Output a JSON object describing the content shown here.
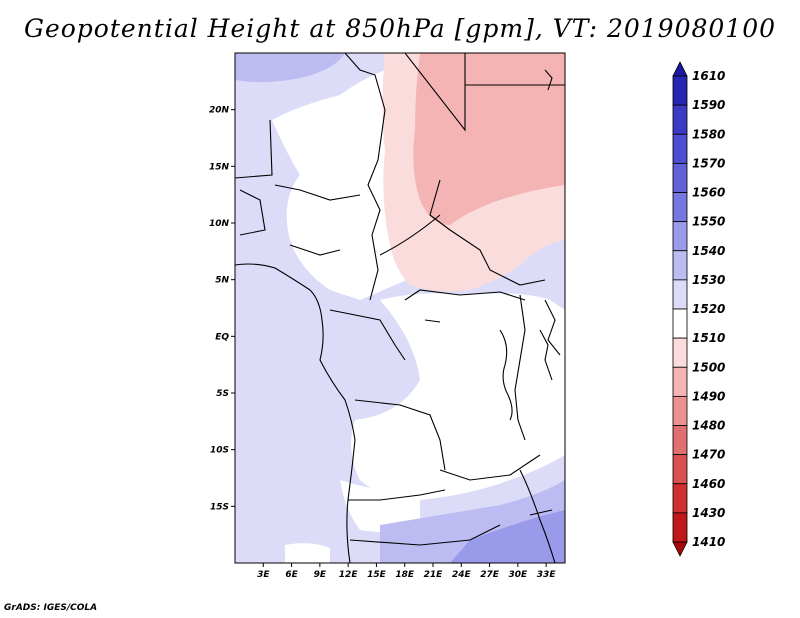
{
  "title": "Geopotential Height at 850hPa [gpm], VT: 2019080100",
  "credit": "GrADS: IGES/COLA",
  "map": {
    "lat_labels": [
      "20N",
      "15N",
      "10N",
      "5N",
      "EQ",
      "5S",
      "10S",
      "15S"
    ],
    "lat_values": [
      20,
      15,
      10,
      5,
      0,
      -5,
      -10,
      -15
    ],
    "lon_labels": [
      "3E",
      "6E",
      "9E",
      "12E",
      "15E",
      "18E",
      "21E",
      "24E",
      "27E",
      "30E",
      "33E"
    ],
    "lon_values": [
      3,
      6,
      9,
      12,
      15,
      18,
      21,
      24,
      27,
      30,
      33
    ],
    "lon_range": [
      0,
      35
    ],
    "lat_range": [
      -20,
      25
    ]
  },
  "colorbar": {
    "levels": [
      "1610",
      "1590",
      "1580",
      "1570",
      "1560",
      "1550",
      "1540",
      "1530",
      "1520",
      "1510",
      "1500",
      "1490",
      "1480",
      "1470",
      "1460",
      "1430",
      "1410"
    ],
    "colors": [
      "#1a1aa0",
      "#2626b4",
      "#3a3ac4",
      "#4e4ed0",
      "#6262d8",
      "#7676e0",
      "#9a9aea",
      "#bcbcf2",
      "#dcdcf8",
      "#ffffff",
      "#fadcdc",
      "#f4b4b4",
      "#ec9090",
      "#e07070",
      "#d85050",
      "#d03030",
      "#c01818",
      "#a80808"
    ]
  }
}
